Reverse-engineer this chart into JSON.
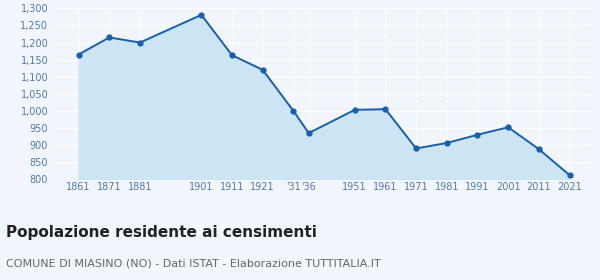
{
  "x_values": [
    1861,
    1871,
    1881,
    1901,
    1911,
    1921,
    1931,
    1936,
    1951,
    1961,
    1971,
    1981,
    1991,
    2001,
    2011,
    2021
  ],
  "y_values": [
    1165,
    1215,
    1200,
    1281,
    1163,
    1120,
    1000,
    935,
    1003,
    1005,
    890,
    906,
    930,
    952,
    888,
    812
  ],
  "x_tick_positions": [
    1861,
    1871,
    1881,
    1901,
    1911,
    1921,
    1931,
    1936,
    1951,
    1961,
    1971,
    1981,
    1991,
    2001,
    2011,
    2021
  ],
  "x_tick_labels": [
    "1861",
    "1871",
    "1881",
    "1901",
    "1911",
    "1921",
    "'31",
    "'36",
    "1951",
    "1961",
    "1971",
    "1981",
    "1991",
    "2001",
    "2011",
    "2021"
  ],
  "line_color": "#1a5fa8",
  "fill_color": "#cde4f5",
  "marker_color": "#1a5fa8",
  "background_color": "#f0f6fc",
  "grid_color": "#ffffff",
  "tick_color": "#5577aa",
  "ylim": [
    800,
    1300
  ],
  "yticks": [
    800,
    850,
    900,
    950,
    1000,
    1050,
    1100,
    1150,
    1200,
    1250,
    1300
  ],
  "xlim_left": 1852,
  "xlim_right": 2028,
  "title": "Popolazione residente ai censimenti",
  "subtitle": "COMUNE DI MIASINO (NO) - Dati ISTAT - Elaborazione TUTTITALIA.IT",
  "title_fontsize": 11,
  "subtitle_fontsize": 8
}
